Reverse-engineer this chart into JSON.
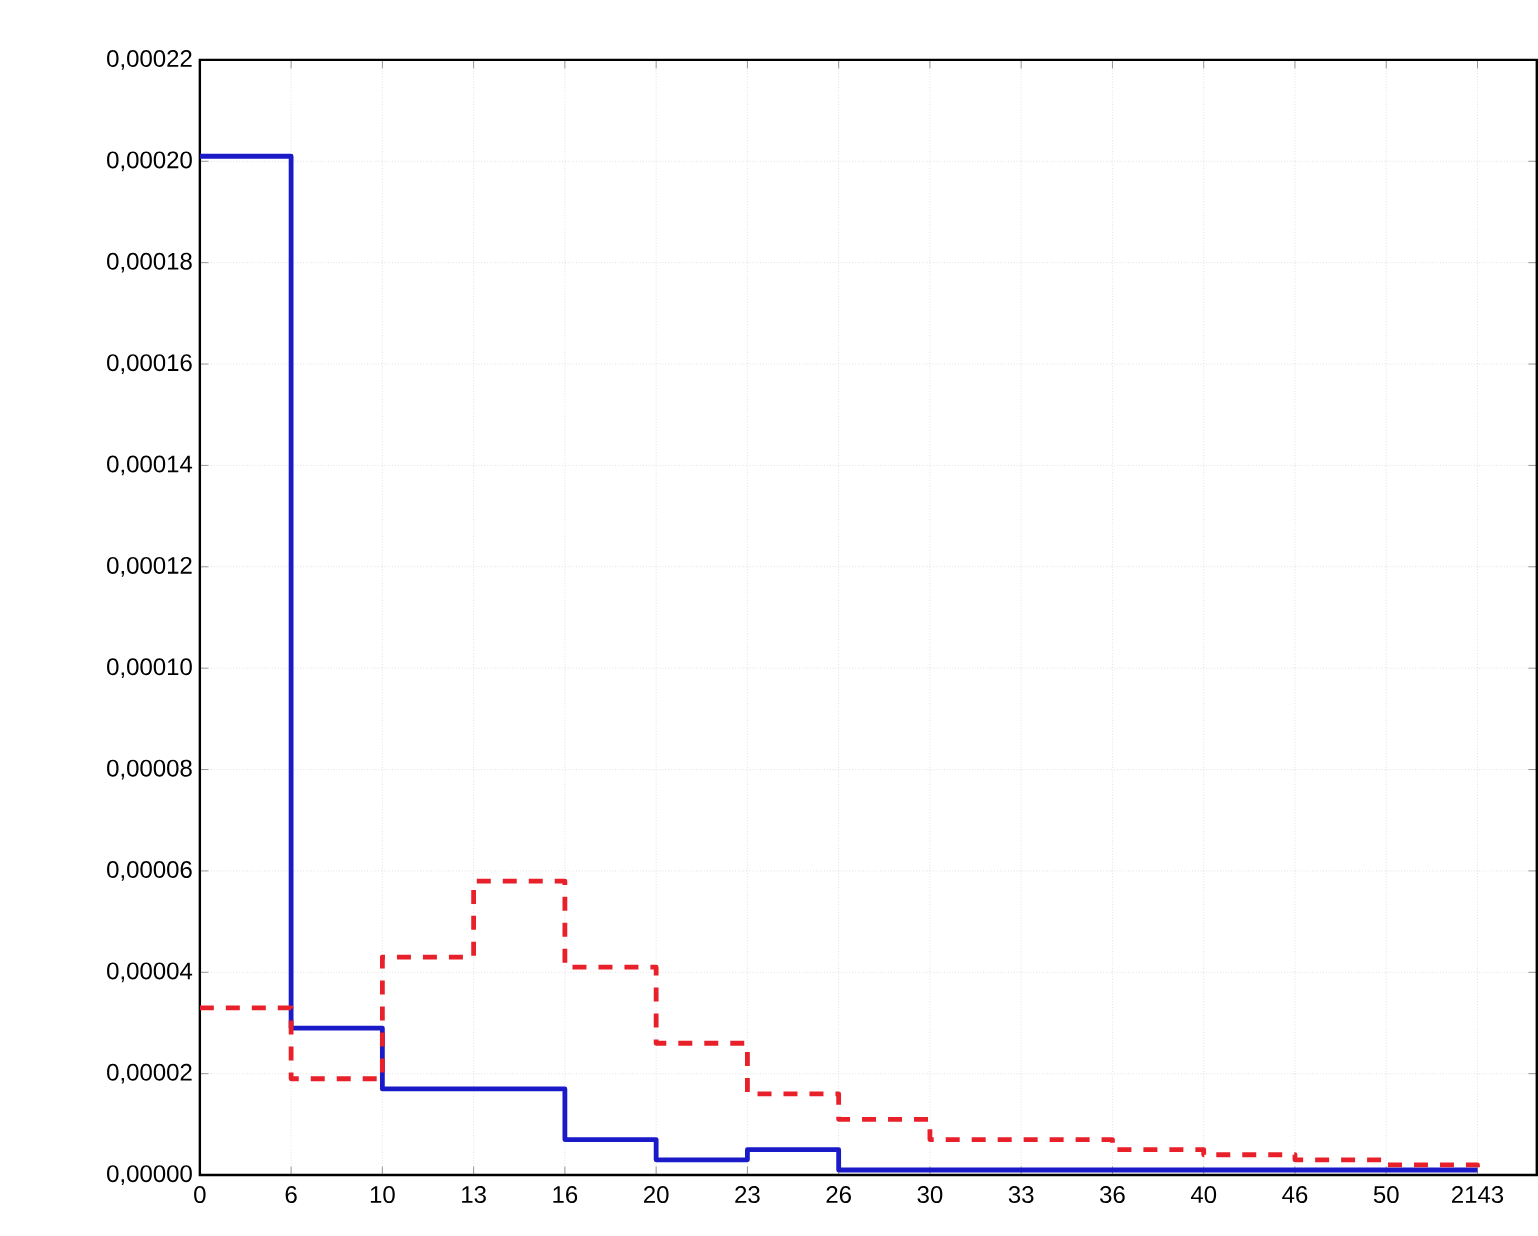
{
  "chart_data": {
    "type": "step",
    "categories": [
      "0",
      "6",
      "10",
      "13",
      "16",
      "20",
      "23",
      "26",
      "30",
      "33",
      "36",
      "40",
      "46",
      "50",
      "2143"
    ],
    "series": [
      {
        "color": "#1a1ac8",
        "line_style": "solid",
        "values": [
          0.000201,
          2.9e-05,
          1.7e-05,
          1.7e-05,
          7e-06,
          3e-06,
          5e-06,
          1e-06,
          1e-06,
          1e-06,
          1e-06,
          1e-06,
          1e-06,
          1e-06,
          1e-06
        ]
      },
      {
        "color": "#e8202a",
        "line_style": "dashed",
        "values": [
          3.3e-05,
          1.9e-05,
          4.3e-05,
          5.8e-05,
          4.1e-05,
          2.6e-05,
          1.6e-05,
          1.1e-05,
          7e-06,
          7e-06,
          5e-06,
          4e-06,
          3e-06,
          2e-06,
          1e-06
        ]
      }
    ],
    "ylim": [
      0,
      0.00022
    ],
    "yticks": [
      {
        "value": 0,
        "label": "0,00000"
      },
      {
        "value": 2e-05,
        "label": "0,00002"
      },
      {
        "value": 4e-05,
        "label": "0,00004"
      },
      {
        "value": 6e-05,
        "label": "0,00006"
      },
      {
        "value": 8e-05,
        "label": "0,00008"
      },
      {
        "value": 0.0001,
        "label": "0,00010"
      },
      {
        "value": 0.00012,
        "label": "0,00012"
      },
      {
        "value": 0.00014,
        "label": "0,00014"
      },
      {
        "value": 0.00016,
        "label": "0,00016"
      },
      {
        "value": 0.00018,
        "label": "0,00018"
      },
      {
        "value": 0.0002,
        "label": "0,00020"
      },
      {
        "value": 0.00022,
        "label": "0,00022"
      }
    ],
    "grid": true
  }
}
